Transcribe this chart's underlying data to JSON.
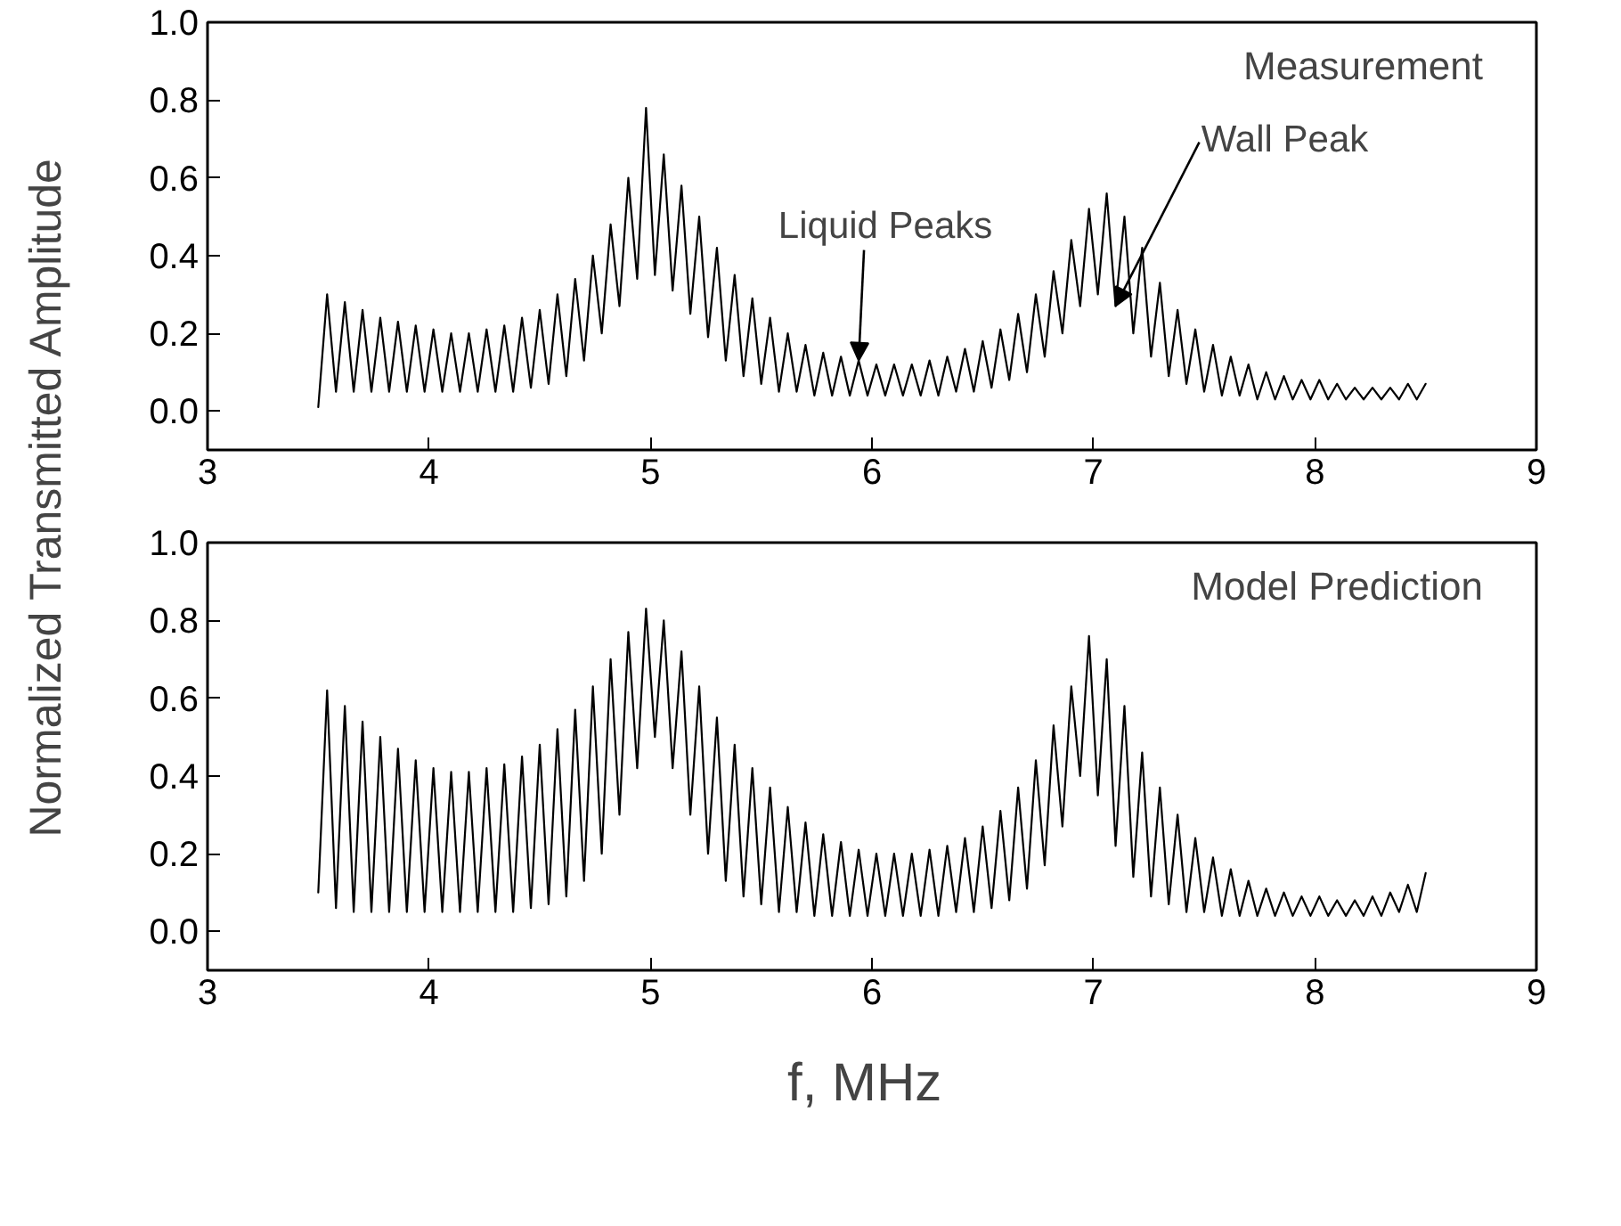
{
  "chart_data": [
    {
      "type": "line",
      "ylabel": "Normalized Transmitted Amplitude",
      "xlim": [
        3,
        9
      ],
      "xticks": [
        3,
        4,
        5,
        6,
        7,
        8,
        9
      ],
      "ylim": [
        -0.1,
        1.0
      ],
      "yticks": [
        {
          "value": 0,
          "label": "0.0"
        },
        {
          "value": 0.2,
          "label": "0.2"
        },
        {
          "value": 0.4,
          "label": "0.4"
        },
        {
          "value": 0.6,
          "label": "0.6"
        },
        {
          "value": 0.8,
          "label": "0.8"
        },
        {
          "value": 1.0,
          "label": "1.0"
        }
      ],
      "grid": false,
      "marker": "none",
      "line_style": "solid",
      "annotations": [
        "Measurement",
        {
          "text": "Liquid Peaks",
          "x": 5.94,
          "y": 0.13
        },
        {
          "text": "Wall Peak",
          "x": 7.1,
          "y": 0.27
        }
      ],
      "series": [
        {
          "color": "#000000",
          "x": [
            3.5,
            3.54,
            3.58,
            3.62,
            3.66,
            3.7,
            3.74,
            3.78,
            3.82,
            3.86,
            3.9,
            3.94,
            3.98,
            4.02,
            4.06,
            4.1,
            4.14,
            4.18,
            4.22,
            4.26,
            4.3,
            4.34,
            4.38,
            4.42,
            4.46,
            4.5,
            4.54,
            4.58,
            4.62,
            4.66,
            4.7,
            4.74,
            4.78,
            4.82,
            4.86,
            4.9,
            4.94,
            4.98,
            5.02,
            5.06,
            5.1,
            5.14,
            5.18,
            5.22,
            5.26,
            5.3,
            5.34,
            5.38,
            5.42,
            5.46,
            5.5,
            5.54,
            5.58,
            5.62,
            5.66,
            5.7,
            5.74,
            5.78,
            5.82,
            5.86,
            5.9,
            5.94,
            5.98,
            6.02,
            6.06,
            6.1,
            6.14,
            6.18,
            6.22,
            6.26,
            6.3,
            6.34,
            6.38,
            6.42,
            6.46,
            6.5,
            6.54,
            6.58,
            6.62,
            6.66,
            6.7,
            6.74,
            6.78,
            6.82,
            6.86,
            6.9,
            6.94,
            6.98,
            7.02,
            7.06,
            7.1,
            7.14,
            7.18,
            7.22,
            7.26,
            7.3,
            7.34,
            7.38,
            7.42,
            7.46,
            7.5,
            7.54,
            7.58,
            7.62,
            7.66,
            7.7,
            7.74,
            7.78,
            7.82,
            7.86,
            7.9,
            7.94,
            7.98,
            8.02,
            8.06,
            8.1,
            8.14,
            8.18,
            8.22,
            8.26,
            8.3,
            8.34,
            8.38,
            8.42,
            8.46,
            8.5
          ],
          "values": [
            0.01,
            0.3,
            0.05,
            0.28,
            0.05,
            0.26,
            0.05,
            0.24,
            0.05,
            0.23,
            0.05,
            0.22,
            0.05,
            0.21,
            0.05,
            0.2,
            0.05,
            0.2,
            0.05,
            0.21,
            0.05,
            0.22,
            0.05,
            0.24,
            0.06,
            0.26,
            0.07,
            0.3,
            0.09,
            0.34,
            0.13,
            0.4,
            0.2,
            0.48,
            0.27,
            0.6,
            0.34,
            0.78,
            0.35,
            0.66,
            0.31,
            0.58,
            0.25,
            0.5,
            0.19,
            0.42,
            0.13,
            0.35,
            0.09,
            0.29,
            0.07,
            0.24,
            0.05,
            0.2,
            0.05,
            0.17,
            0.04,
            0.15,
            0.04,
            0.14,
            0.04,
            0.13,
            0.04,
            0.12,
            0.04,
            0.12,
            0.04,
            0.12,
            0.04,
            0.13,
            0.04,
            0.14,
            0.05,
            0.16,
            0.05,
            0.18,
            0.06,
            0.21,
            0.08,
            0.25,
            0.1,
            0.3,
            0.14,
            0.36,
            0.2,
            0.44,
            0.27,
            0.52,
            0.3,
            0.56,
            0.27,
            0.5,
            0.2,
            0.42,
            0.14,
            0.33,
            0.09,
            0.26,
            0.07,
            0.21,
            0.05,
            0.17,
            0.04,
            0.14,
            0.04,
            0.12,
            0.03,
            0.1,
            0.03,
            0.09,
            0.03,
            0.08,
            0.03,
            0.08,
            0.03,
            0.07,
            0.03,
            0.06,
            0.03,
            0.06,
            0.03,
            0.06,
            0.03,
            0.07,
            0.03,
            0.07
          ]
        }
      ]
    },
    {
      "type": "line",
      "xlabel": "f,  MHz",
      "xlim": [
        3,
        9
      ],
      "xticks": [
        3,
        4,
        5,
        6,
        7,
        8,
        9
      ],
      "ylim": [
        -0.1,
        1.0
      ],
      "yticks": [
        {
          "value": 0,
          "label": "0.0"
        },
        {
          "value": 0.2,
          "label": "0.2"
        },
        {
          "value": 0.4,
          "label": "0.4"
        },
        {
          "value": 0.6,
          "label": "0.6"
        },
        {
          "value": 0.8,
          "label": "0.8"
        },
        {
          "value": 1.0,
          "label": "1.0"
        }
      ],
      "grid": false,
      "marker": "none",
      "line_style": "solid",
      "annotations": [
        "Model Prediction"
      ],
      "series": [
        {
          "color": "#000000",
          "x": [
            3.5,
            3.54,
            3.58,
            3.62,
            3.66,
            3.7,
            3.74,
            3.78,
            3.82,
            3.86,
            3.9,
            3.94,
            3.98,
            4.02,
            4.06,
            4.1,
            4.14,
            4.18,
            4.22,
            4.26,
            4.3,
            4.34,
            4.38,
            4.42,
            4.46,
            4.5,
            4.54,
            4.58,
            4.62,
            4.66,
            4.7,
            4.74,
            4.78,
            4.82,
            4.86,
            4.9,
            4.94,
            4.98,
            5.02,
            5.06,
            5.1,
            5.14,
            5.18,
            5.22,
            5.26,
            5.3,
            5.34,
            5.38,
            5.42,
            5.46,
            5.5,
            5.54,
            5.58,
            5.62,
            5.66,
            5.7,
            5.74,
            5.78,
            5.82,
            5.86,
            5.9,
            5.94,
            5.98,
            6.02,
            6.06,
            6.1,
            6.14,
            6.18,
            6.22,
            6.26,
            6.3,
            6.34,
            6.38,
            6.42,
            6.46,
            6.5,
            6.54,
            6.58,
            6.62,
            6.66,
            6.7,
            6.74,
            6.78,
            6.82,
            6.86,
            6.9,
            6.94,
            6.98,
            7.02,
            7.06,
            7.1,
            7.14,
            7.18,
            7.22,
            7.26,
            7.3,
            7.34,
            7.38,
            7.42,
            7.46,
            7.5,
            7.54,
            7.58,
            7.62,
            7.66,
            7.7,
            7.74,
            7.78,
            7.82,
            7.86,
            7.9,
            7.94,
            7.98,
            8.02,
            8.06,
            8.1,
            8.14,
            8.18,
            8.22,
            8.26,
            8.3,
            8.34,
            8.38,
            8.42,
            8.46,
            8.5
          ],
          "values": [
            0.1,
            0.62,
            0.06,
            0.58,
            0.05,
            0.54,
            0.05,
            0.5,
            0.05,
            0.47,
            0.05,
            0.44,
            0.05,
            0.42,
            0.05,
            0.41,
            0.05,
            0.41,
            0.05,
            0.42,
            0.05,
            0.43,
            0.05,
            0.45,
            0.06,
            0.48,
            0.07,
            0.52,
            0.09,
            0.57,
            0.13,
            0.63,
            0.2,
            0.7,
            0.3,
            0.77,
            0.42,
            0.83,
            0.5,
            0.8,
            0.42,
            0.72,
            0.3,
            0.63,
            0.2,
            0.55,
            0.13,
            0.48,
            0.09,
            0.42,
            0.07,
            0.37,
            0.05,
            0.32,
            0.05,
            0.28,
            0.04,
            0.25,
            0.04,
            0.23,
            0.04,
            0.21,
            0.04,
            0.2,
            0.04,
            0.2,
            0.04,
            0.2,
            0.04,
            0.21,
            0.04,
            0.22,
            0.05,
            0.24,
            0.05,
            0.27,
            0.06,
            0.31,
            0.08,
            0.37,
            0.11,
            0.44,
            0.17,
            0.53,
            0.27,
            0.63,
            0.4,
            0.76,
            0.35,
            0.7,
            0.22,
            0.58,
            0.14,
            0.46,
            0.09,
            0.37,
            0.07,
            0.3,
            0.05,
            0.24,
            0.05,
            0.19,
            0.04,
            0.16,
            0.04,
            0.13,
            0.04,
            0.11,
            0.04,
            0.1,
            0.04,
            0.09,
            0.04,
            0.09,
            0.04,
            0.08,
            0.04,
            0.08,
            0.04,
            0.09,
            0.04,
            0.1,
            0.05,
            0.12,
            0.05,
            0.15
          ]
        }
      ]
    }
  ]
}
